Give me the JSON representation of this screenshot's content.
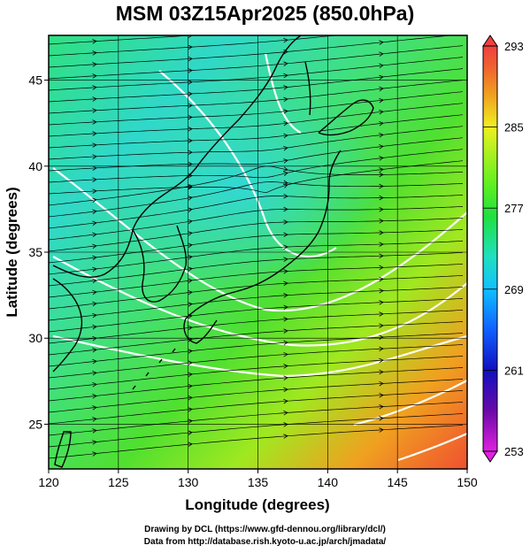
{
  "title": "MSM 03Z15Apr2025 (850.0hPa)",
  "axes": {
    "xlabel": "Longitude (degrees)",
    "ylabel": "Latitude  (degrees)",
    "xticks": [
      "120",
      "125",
      "130",
      "135",
      "140",
      "145",
      "150"
    ],
    "yticks": [
      "25",
      "30",
      "35",
      "40",
      "45"
    ],
    "xlim": [
      120,
      150
    ],
    "ylim": [
      22.4,
      47.6
    ]
  },
  "colorbar": {
    "ticks": [
      "293",
      "285",
      "277",
      "269",
      "261",
      "253"
    ],
    "range": [
      253,
      293
    ],
    "colors": [
      "#e020e0",
      "#6a0aa8",
      "#1010c0",
      "#1060ff",
      "#10c0ff",
      "#20e0c0",
      "#20e040",
      "#60f020",
      "#b0f020",
      "#f0f020",
      "#f0a020",
      "#f06030",
      "#f04040"
    ]
  },
  "map": {
    "field": "temperature",
    "streamlines": "wind",
    "contour_color": "#ffffff"
  },
  "credits": {
    "line1": "Drawing by DCL (https://www.gfd-dennou.org/library/dcl/)",
    "line2": "Data from http://database.rish.kyoto-u.ac.jp/arch/jmadata/"
  }
}
